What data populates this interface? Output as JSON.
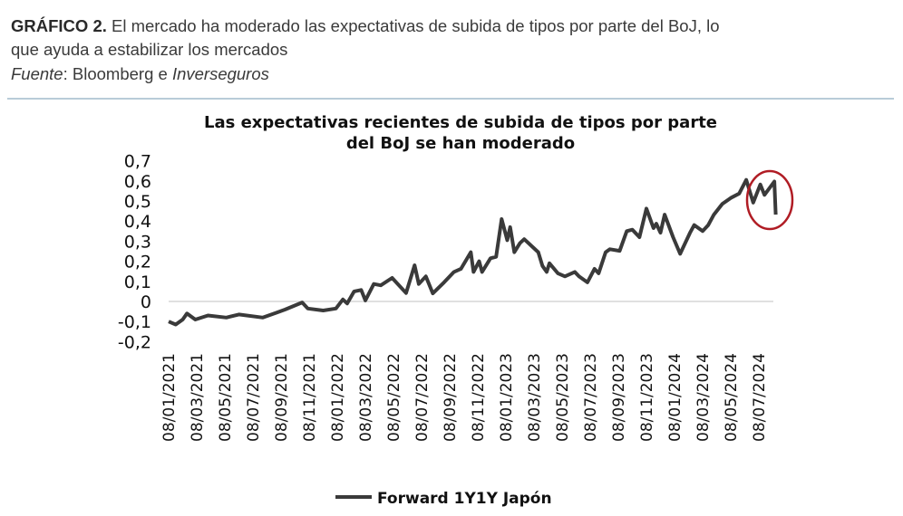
{
  "caption": {
    "label": "GRÁFICO 2.",
    "text_line1": " El mercado ha moderado las expectativas de subida de tipos por parte del BoJ, lo",
    "text_line2": "que ayuda a estabilizar los mercados",
    "source_label": "Fuente",
    "source_sep": ": Bloomberg e ",
    "source_name": "Inverseguros"
  },
  "chart_data": {
    "type": "line",
    "title": [
      "Las expectativas recientes  de subida de tipos por parte",
      "del BoJ se han moderado"
    ],
    "xlabel": "",
    "ylabel": "",
    "ylim": [
      -0.2,
      0.7
    ],
    "yticks": [
      "0,7",
      "0,6",
      "0,5",
      "0,4",
      "0,3",
      "0,2",
      "0,1",
      "0",
      "-0,1",
      "-0,2"
    ],
    "ytick_values": [
      0.7,
      0.6,
      0.5,
      0.4,
      0.3,
      0.2,
      0.1,
      0,
      -0.1,
      -0.2
    ],
    "xticks": [
      "08/01/2021",
      "08/03/2021",
      "08/05/2021",
      "08/07/2021",
      "08/09/2021",
      "08/11/2021",
      "08/01/2022",
      "08/03/2022",
      "08/05/2022",
      "08/07/2022",
      "08/09/2022",
      "08/11/2022",
      "08/01/2023",
      "08/03/2023",
      "08/05/2023",
      "08/07/2023",
      "08/09/2023",
      "08/11/2023",
      "08/01/2024",
      "08/03/2024",
      "08/05/2024",
      "08/07/2024"
    ],
    "x_unit": "months since 08/01/2021",
    "grid": false,
    "zero_line": true,
    "legend_position": "bottom",
    "highlight": {
      "type": "circle",
      "around": "latest values (Jul-Aug 2024)",
      "color": "#b01c24"
    },
    "series": [
      {
        "name": "Forward 1Y1Y Japón",
        "color": "#3a3a3a",
        "x": [
          0,
          0.5,
          1,
          1.3,
          1.9,
          2.8,
          4.1,
          5,
          6.7,
          7.7,
          8.3,
          9.5,
          9.9,
          11,
          11.9,
          12.4,
          12.7,
          13.2,
          13.7,
          14,
          14.6,
          15.1,
          15.9,
          16.9,
          17.5,
          17.8,
          18.3,
          18.8,
          19.6,
          20.3,
          20.8,
          21.5,
          21.7,
          22.1,
          22.3,
          22.9,
          23.3,
          23.7,
          24.1,
          24.3,
          24.6,
          25,
          25.3,
          26.3,
          26.6,
          26.9,
          27.1,
          27.7,
          28.2,
          28.9,
          29.2,
          29.8,
          30.3,
          30.6,
          31.1,
          31.4,
          32.1,
          32.6,
          33,
          33.5,
          34,
          34.5,
          34.7,
          35,
          35.3,
          35.9,
          36.4,
          37.1,
          37.4,
          38,
          38.4,
          38.8,
          39.4,
          40,
          40.6,
          41.1,
          41.6,
          42.1,
          42.4,
          43.1,
          43.2
        ],
        "values": [
          -0.1,
          -0.115,
          -0.09,
          -0.06,
          -0.09,
          -0.07,
          -0.08,
          -0.065,
          -0.08,
          -0.055,
          -0.04,
          -0.005,
          -0.035,
          -0.045,
          -0.035,
          0.01,
          -0.01,
          0.05,
          0.057,
          0.005,
          0.087,
          0.08,
          0.117,
          0.042,
          0.18,
          0.087,
          0.125,
          0.04,
          0.095,
          0.147,
          0.162,
          0.245,
          0.147,
          0.2,
          0.147,
          0.215,
          0.222,
          0.41,
          0.305,
          0.37,
          0.245,
          0.29,
          0.31,
          0.245,
          0.177,
          0.147,
          0.19,
          0.14,
          0.125,
          0.147,
          0.125,
          0.095,
          0.162,
          0.14,
          0.245,
          0.26,
          0.252,
          0.35,
          0.357,
          0.32,
          0.462,
          0.365,
          0.387,
          0.342,
          0.432,
          0.32,
          0.237,
          0.342,
          0.38,
          0.35,
          0.38,
          0.432,
          0.485,
          0.515,
          0.537,
          0.605,
          0.492,
          0.582,
          0.53,
          0.597,
          0.432
        ]
      }
    ]
  }
}
